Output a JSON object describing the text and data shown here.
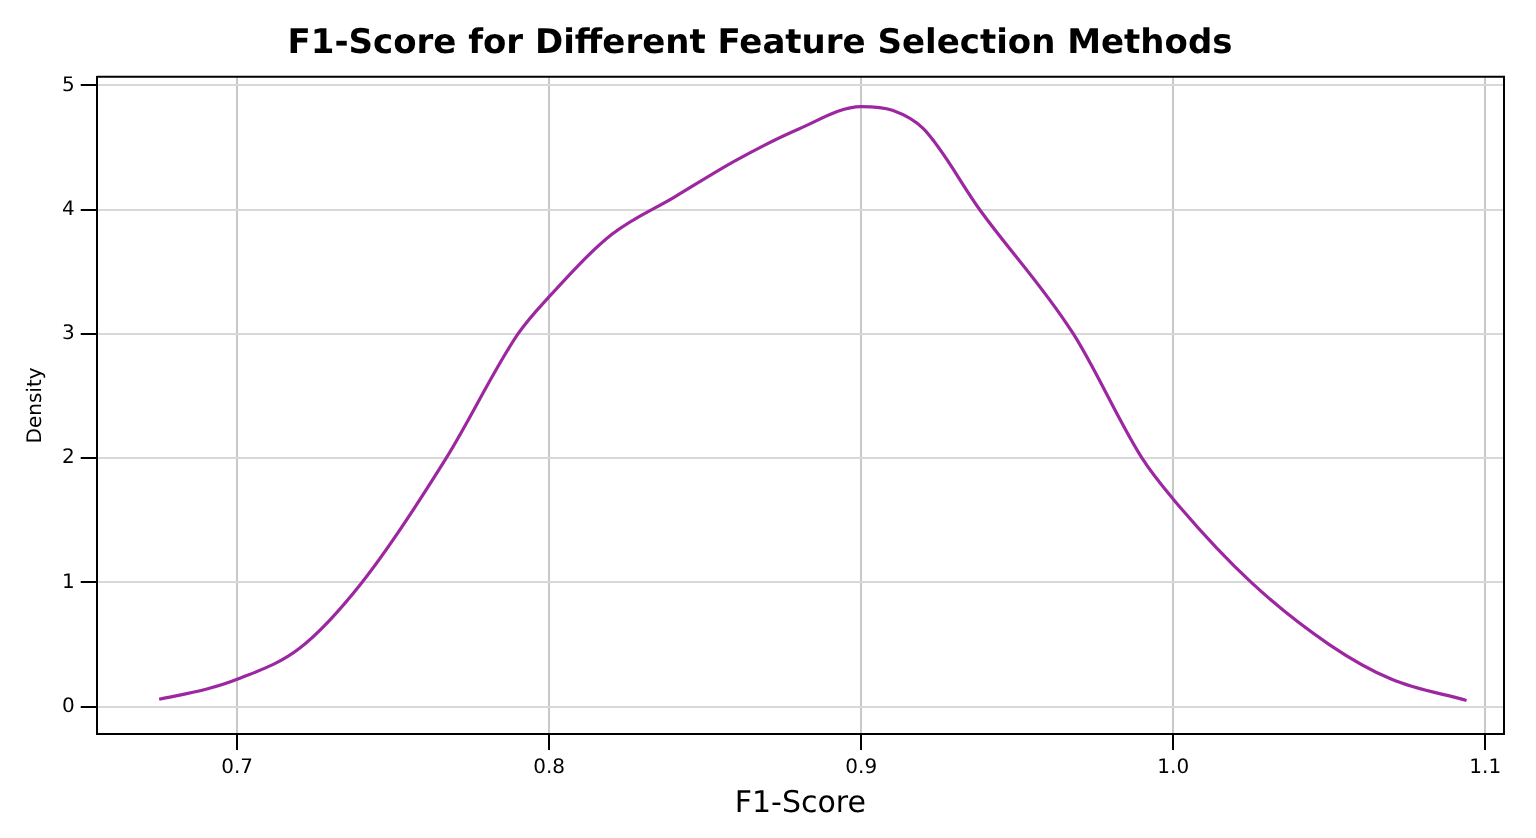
{
  "chart_data": {
    "type": "line",
    "title": "F1-Score for Different Feature Selection Methods",
    "xlabel": "F1-Score",
    "ylabel": "Density",
    "x": [
      0.675,
      0.69,
      0.7,
      0.72,
      0.74,
      0.767,
      0.79,
      0.8,
      0.82,
      0.84,
      0.86,
      0.88,
      0.9,
      0.91,
      0.92,
      0.938,
      0.968,
      0.99,
      1.0,
      1.025,
      1.05,
      1.07,
      1.094
    ],
    "series": [
      {
        "color": "#9c27a0",
        "values": [
          0.06,
          0.14,
          0.22,
          0.47,
          1.0,
          2.0,
          3.0,
          3.3,
          3.8,
          4.1,
          4.4,
          4.65,
          4.83,
          4.8,
          4.65,
          4.0,
          3.0,
          2.0,
          1.67,
          1.0,
          0.5,
          0.22,
          0.05
        ]
      }
    ],
    "xlim": [
      0.655,
      1.106
    ],
    "xticks": [
      {
        "value": 0.7,
        "label": "0.7"
      },
      {
        "value": 0.8,
        "label": "0.8"
      },
      {
        "value": 0.9,
        "label": "0.9"
      },
      {
        "value": 1.0,
        "label": "1.0"
      },
      {
        "value": 1.1,
        "label": "1.1"
      }
    ],
    "ylim": [
      -0.22,
      5.07
    ],
    "yticks": [
      0,
      1,
      2,
      3,
      4,
      5
    ],
    "grid": true,
    "legend": false,
    "marker": "none",
    "line_style": "solid"
  }
}
